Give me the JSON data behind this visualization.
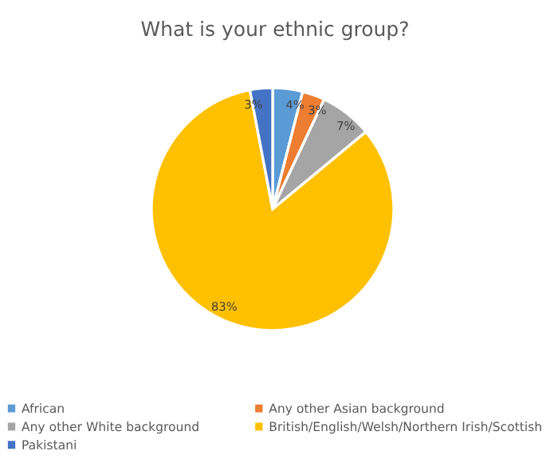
{
  "chart_data": {
    "type": "pie",
    "title": "What is your ethnic group?",
    "categories": [
      "African",
      "Any other Asian background",
      "Any other White background",
      "British/English/Welsh/Northern Irish/Scottish",
      "Pakistani"
    ],
    "values": [
      4,
      3,
      7,
      83,
      3
    ],
    "colors": [
      "#5b9bd5",
      "#ed7d31",
      "#a5a5a5",
      "#ffc000",
      "#4472c4"
    ],
    "value_labels": [
      "4%",
      "3%",
      "7%",
      "83%",
      "3%"
    ],
    "legend": "bottom"
  }
}
